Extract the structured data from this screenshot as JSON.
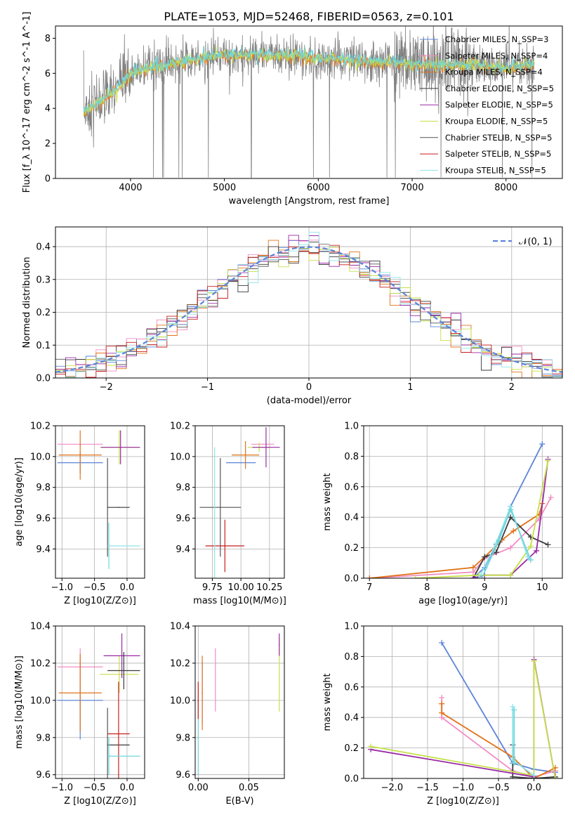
{
  "figure_title": "PLATE=1053, MJD=52468, FIBERID=0563, z=0.101",
  "chart_data": [
    {
      "id": "spectrum",
      "type": "line",
      "xlabel": "wavelength [Angstrom, rest frame]",
      "ylabel": "Flux [f_λ 10^-17 erg cm^-2 s^-1 A^-1]",
      "xlim": [
        3200,
        8600
      ],
      "ylim": [
        0,
        8.7
      ],
      "xticks": [
        4000,
        5000,
        6000,
        7000,
        8000
      ],
      "yticks": [
        0,
        2,
        4,
        6,
        8
      ],
      "grid": false,
      "legend_position": "top-right",
      "legend": [
        {
          "name": "Chabrier MILES, N_SSP=3",
          "color": "#5b84d9"
        },
        {
          "name": "Salpeter MILES, N_SSP=4",
          "color": "#f28cc4"
        },
        {
          "name": "Kroupa MILES, N_SSP=4",
          "color": "#e0731a"
        },
        {
          "name": "Chabrier ELODIE, N_SSP=5",
          "color": "#3a3a3a"
        },
        {
          "name": "Salpeter ELODIE, N_SSP=5",
          "color": "#9a2aa6"
        },
        {
          "name": "Kroupa ELODIE, N_SSP=5",
          "color": "#c5e04a"
        },
        {
          "name": "Chabrier STELIB, N_SSP=5",
          "color": "#555555"
        },
        {
          "name": "Salpeter STELIB, N_SSP=5",
          "color": "#c81e1e"
        },
        {
          "name": "Kroupa STELIB, N_SSP=5",
          "color": "#8fe3e8"
        }
      ],
      "data_color": "#808080",
      "model_colors": [
        "#ed7a24",
        "#c5e04a",
        "#6fd6dc"
      ],
      "continuum": {
        "x": [
          3500,
          3700,
          3900,
          4000,
          4200,
          4500,
          4800,
          5000,
          5200,
          5500,
          5800,
          6000,
          6200,
          6500,
          6800,
          7000,
          7200,
          7500,
          7800,
          8000,
          8300
        ],
        "y": [
          3.8,
          4.5,
          5.3,
          6.0,
          6.3,
          6.6,
          6.9,
          7.0,
          7.05,
          7.05,
          7.0,
          6.9,
          6.8,
          6.7,
          6.6,
          6.5,
          6.45,
          6.5,
          6.4,
          6.3,
          6.5
        ]
      }
    },
    {
      "id": "residuals",
      "type": "histogram",
      "xlabel": "(data-model)/error",
      "ylabel": "Normed distribution",
      "xlim": [
        -2.5,
        2.5
      ],
      "ylim": [
        0,
        0.46
      ],
      "xticks": [
        -2,
        -1,
        0,
        1,
        2
      ],
      "yticks": [
        0.0,
        0.1,
        0.2,
        0.3,
        0.4
      ],
      "grid": true,
      "legend_position": "top-right",
      "legend": [
        {
          "name": "𝒩(0, 1)",
          "color": "#5b84d9",
          "style": "dashed"
        }
      ],
      "bin_width": 0.1,
      "colors": [
        "#5b84d9",
        "#f28cc4",
        "#e0731a",
        "#3a3a3a",
        "#9a2aa6",
        "#c5e04a",
        "#555555",
        "#c81e1e",
        "#8fe3e8"
      ]
    },
    {
      "id": "age-vs-Z",
      "type": "errorbar",
      "xlabel": "Z [log10(Z/Z⊙)]",
      "ylabel": "age  [log10(age/yr)]",
      "xlim": [
        -1.1,
        0.27
      ],
      "ylim": [
        9.21,
        10.2
      ],
      "xticks": [
        -1.0,
        -0.5,
        0.0
      ],
      "yticks": [
        9.4,
        9.6,
        9.8,
        10.0,
        10.2
      ],
      "grid": true,
      "points": [
        {
          "x": -0.72,
          "y": 9.96,
          "xerr": 0.35,
          "yerr": 0.07,
          "color": "#5b84d9"
        },
        {
          "x": -0.72,
          "y": 10.08,
          "xerr": 0.35,
          "yerr": 0.01,
          "color": "#f28cc4"
        },
        {
          "x": -0.72,
          "y": 10.01,
          "xerr": 0.33,
          "yerr": 0.16,
          "color": "#e0731a"
        },
        {
          "x": -0.12,
          "y": 10.06,
          "xerr": 0.3,
          "yerr": 0.11,
          "color": "#c5e04a"
        },
        {
          "x": -0.1,
          "y": 10.06,
          "xerr": 0.3,
          "yerr": 0.11,
          "color": "#9a2aa6"
        },
        {
          "x": -0.3,
          "y": 9.67,
          "xerr": 0.0,
          "yerr": 0.32,
          "color": "#555555"
        },
        {
          "x": -0.13,
          "y": 9.67,
          "xerr": 0.17,
          "yerr": 0.0,
          "color": "#3a3a3a"
        },
        {
          "x": -0.28,
          "y": 9.42,
          "xerr": 0.0,
          "yerr": 0.15,
          "color": "#6fd6dc"
        },
        {
          "x": -0.05,
          "y": 9.42,
          "xerr": 0.25,
          "yerr": 0.0,
          "color": "#8fe3e8"
        }
      ]
    },
    {
      "id": "age-vs-mass",
      "type": "errorbar",
      "xlabel": "mass [log10(M/M⊙)]",
      "ylabel": "",
      "xlim": [
        9.6,
        10.38
      ],
      "ylim": [
        9.21,
        10.2
      ],
      "xticks": [
        9.75,
        10.0,
        10.25
      ],
      "tick_labels": [
        "9.75",
        "10.00",
        "10.25"
      ],
      "yticks": [
        9.4,
        9.6,
        9.8,
        10.0,
        10.2
      ],
      "grid": true,
      "points": [
        {
          "x": 10.0,
          "y": 9.96,
          "xerr": 0.13,
          "yerr": 0.0,
          "color": "#5b84d9"
        },
        {
          "x": 10.19,
          "y": 10.08,
          "xerr": 0.1,
          "yerr": 0.0,
          "color": "#f28cc4"
        },
        {
          "x": 10.04,
          "y": 10.01,
          "xerr": 0.12,
          "yerr": 0.09,
          "color": "#e0731a"
        },
        {
          "x": 10.16,
          "y": 10.06,
          "xerr": 0.1,
          "yerr": 0.03,
          "color": "#c5e04a"
        },
        {
          "x": 10.22,
          "y": 10.06,
          "xerr": 0.12,
          "yerr": 0.13,
          "color": "#9a2aa6"
        },
        {
          "x": 9.82,
          "y": 9.67,
          "xerr": 0.18,
          "yerr": 0.32,
          "color": "#555555"
        },
        {
          "x": 9.86,
          "y": 9.42,
          "xerr": 0.17,
          "yerr": 0.17,
          "color": "#c81e1e"
        },
        {
          "x": 9.77,
          "y": 9.42,
          "xerr": 0.0,
          "yerr": 0.64,
          "color": "#8fe3e8"
        }
      ]
    },
    {
      "id": "mass-weight-vs-age",
      "type": "line",
      "xlabel": "age  [log10(age/yr)]",
      "ylabel": "mass weight",
      "xlim": [
        6.9,
        10.35
      ],
      "ylim": [
        0.0,
        1.0
      ],
      "xticks": [
        7,
        8,
        9,
        10
      ],
      "yticks": [
        0.0,
        0.2,
        0.4,
        0.6,
        0.8,
        1.0
      ],
      "grid": true,
      "series": [
        {
          "color": "#5b84d9",
          "x": [
            8.8,
            9.0,
            9.2,
            9.45,
            10.0
          ],
          "y": [
            0.0,
            0.07,
            0.22,
            0.47,
            0.88
          ]
        },
        {
          "color": "#f28cc4",
          "x": [
            7.0,
            8.8,
            9.0,
            9.45,
            9.95,
            10.15
          ],
          "y": [
            0.0,
            0.04,
            0.13,
            0.2,
            0.39,
            0.53
          ]
        },
        {
          "color": "#e0731a",
          "x": [
            7.0,
            8.8,
            9.0,
            9.3,
            9.5,
            9.95,
            10.0
          ],
          "y": [
            0.0,
            0.07,
            0.14,
            0.25,
            0.31,
            0.42,
            0.49
          ]
        },
        {
          "color": "#3a3a3a",
          "x": [
            8.8,
            9.0,
            9.2,
            9.45,
            9.8,
            10.1
          ],
          "y": [
            0.0,
            0.14,
            0.17,
            0.4,
            0.27,
            0.22
          ]
        },
        {
          "color": "#9a2aa6",
          "x": [
            8.8,
            9.0,
            9.45,
            9.9,
            10.1
          ],
          "y": [
            0.0,
            0.02,
            0.02,
            0.18,
            0.78
          ]
        },
        {
          "color": "#c5e04a",
          "x": [
            7.8,
            8.9,
            9.45,
            9.8,
            10.1
          ],
          "y": [
            0.0,
            0.02,
            0.02,
            0.21,
            0.77
          ]
        },
        {
          "color": "#8fe3e8",
          "x": [
            8.9,
            9.2,
            9.45,
            9.75,
            9.8
          ],
          "y": [
            0.0,
            0.23,
            0.47,
            0.14,
            0.12
          ]
        },
        {
          "color": "#6fd6dc",
          "x": [
            8.95,
            9.25,
            9.45,
            9.8
          ],
          "y": [
            0.0,
            0.25,
            0.45,
            0.12
          ]
        }
      ]
    },
    {
      "id": "mass-vs-Z",
      "type": "errorbar",
      "xlabel": "Z [log10(Z/Z⊙)]",
      "ylabel": "mass [log10(M/M⊙)]",
      "xlim": [
        -1.1,
        0.27
      ],
      "ylim": [
        9.58,
        10.4
      ],
      "xticks": [
        -1.0,
        -0.5,
        0.0
      ],
      "yticks": [
        9.6,
        9.8,
        10.0,
        10.2,
        10.4
      ],
      "grid": true,
      "points": [
        {
          "x": -0.72,
          "y": 10.0,
          "xerr": 0.35,
          "yerr": 0.21,
          "color": "#5b84d9"
        },
        {
          "x": -0.72,
          "y": 10.18,
          "xerr": 0.35,
          "yerr": 0.1,
          "color": "#f28cc4"
        },
        {
          "x": -0.72,
          "y": 10.04,
          "xerr": 0.33,
          "yerr": 0.21,
          "color": "#e0731a"
        },
        {
          "x": -0.12,
          "y": 10.14,
          "xerr": 0.3,
          "yerr": 0.1,
          "color": "#c5e04a"
        },
        {
          "x": -0.08,
          "y": 10.24,
          "xerr": 0.28,
          "yerr": 0.12,
          "color": "#9a2aa6"
        },
        {
          "x": -0.05,
          "y": 10.16,
          "xerr": 0.25,
          "yerr": 0.1,
          "color": "#3a3a3a"
        },
        {
          "x": -0.3,
          "y": 9.76,
          "xerr": 0.0,
          "yerr": 0.2,
          "color": "#555555"
        },
        {
          "x": -0.13,
          "y": 9.76,
          "xerr": 0.17,
          "yerr": 0.0,
          "color": "#3a3a3a"
        },
        {
          "x": -0.13,
          "y": 9.82,
          "xerr": 0.17,
          "yerr": 0.28,
          "color": "#c81e1e"
        },
        {
          "x": -0.05,
          "y": 9.7,
          "xerr": 0.25,
          "yerr": 0.0,
          "color": "#6fd6dc"
        },
        {
          "x": -0.28,
          "y": 9.7,
          "xerr": 0.0,
          "yerr": 0.1,
          "color": "#6fd6dc"
        }
      ]
    },
    {
      "id": "mass-vs-ebv",
      "type": "errorbar",
      "xlabel": "E(B-V)",
      "ylabel": "",
      "xlim": [
        -0.003,
        0.085
      ],
      "ylim": [
        9.58,
        10.4
      ],
      "xticks": [
        0.0,
        0.05
      ],
      "tick_labels": [
        "0.00",
        "0.05"
      ],
      "yticks": [
        9.6,
        9.8,
        10.0,
        10.2,
        10.4
      ],
      "grid": true,
      "points": [
        {
          "x": 0.0,
          "y": 9.8,
          "xerr": 0.0,
          "yerr": 0.2,
          "color": "#6fd6dc"
        },
        {
          "x": 0.0,
          "y": 10.0,
          "xerr": 0.0,
          "yerr": 0.1,
          "color": "#c81e1e"
        },
        {
          "x": 0.004,
          "y": 10.04,
          "xerr": 0.0,
          "yerr": 0.17,
          "color": "#5b84d9"
        },
        {
          "x": 0.004,
          "y": 10.04,
          "xerr": 0.0,
          "yerr": 0.2,
          "color": "#e0731a"
        },
        {
          "x": 0.017,
          "y": 10.11,
          "xerr": 0.0,
          "yerr": 0.17,
          "color": "#f28cc4"
        },
        {
          "x": 0.08,
          "y": 10.14,
          "xerr": 0.0,
          "yerr": 0.2,
          "color": "#c5e04a"
        },
        {
          "x": 0.08,
          "y": 10.3,
          "xerr": 0.0,
          "yerr": 0.06,
          "color": "#9a2aa6"
        }
      ]
    },
    {
      "id": "mass-weight-vs-Z",
      "type": "line",
      "xlabel": "Z [log10(Z/Z⊙)]",
      "ylabel": "mass weight",
      "xlim": [
        -2.4,
        0.4
      ],
      "ylim": [
        0.0,
        1.0
      ],
      "xticks": [
        -2.0,
        -1.5,
        -1.0,
        -0.5,
        0.0
      ],
      "yticks": [
        0.0,
        0.2,
        0.4,
        0.6,
        0.8,
        1.0
      ],
      "grid": true,
      "series": [
        {
          "color": "#5b84d9",
          "x": [
            -1.3,
            -0.3,
            0.0,
            0.3
          ],
          "y": [
            0.89,
            0.1,
            0.06,
            0.04
          ]
        },
        {
          "color": "#f28cc4",
          "x": [
            -1.3,
            -1.3,
            -0.3,
            0.0,
            0.3
          ],
          "y": [
            0.53,
            0.4,
            0.05,
            0.01,
            0.05
          ]
        },
        {
          "color": "#e0731a",
          "x": [
            -1.3,
            -1.3,
            -0.3,
            0.0,
            0.3
          ],
          "y": [
            0.49,
            0.43,
            0.14,
            0.0,
            0.07
          ]
        },
        {
          "color": "#3a3a3a",
          "x": [
            -0.3,
            -0.3,
            0.0,
            0.3
          ],
          "y": [
            0.22,
            0.01,
            0.0,
            0.01
          ]
        },
        {
          "color": "#9a2aa6",
          "x": [
            -2.3,
            0.0,
            0.0,
            0.3
          ],
          "y": [
            0.19,
            0.01,
            0.78,
            0.0
          ]
        },
        {
          "color": "#c5e04a",
          "x": [
            -2.3,
            0.0,
            0.0,
            0.3
          ],
          "y": [
            0.21,
            0.02,
            0.77,
            0.0
          ]
        },
        {
          "color": "#8fe3e8",
          "x": [
            -0.3,
            -0.3,
            0.0
          ],
          "y": [
            0.47,
            0.12,
            0.02
          ]
        },
        {
          "color": "#6fd6dc",
          "x": [
            -0.28,
            -0.28
          ],
          "y": [
            0.45,
            0.1
          ]
        }
      ]
    }
  ]
}
